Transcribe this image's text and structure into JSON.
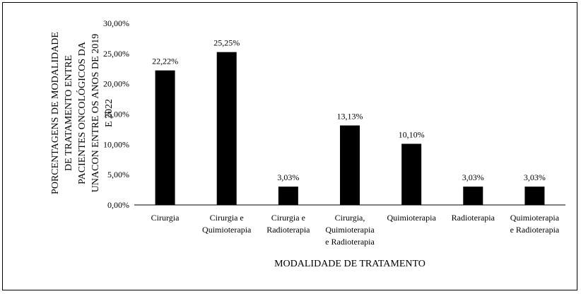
{
  "chart_data": {
    "type": "bar",
    "title": "",
    "xlabel": "MODALIDADE DE TRATAMENTO",
    "ylabel": "PORCENTAGENS DE MODALIDADE DE TRATAMENTO ENTRE PACIENTES ONCOLÓGICOS DA UNACON ENTRE OS ANOS DE 2019 E 2022",
    "ylabel_lines": [
      "PORCENTAGENS DE MODALIDADE",
      "DE TRATAMENTO ENTRE",
      "PACIENTES ONCOLÓGICOS DA",
      "UNACON ENTRE OS ANOS DE 2019",
      "E 2022"
    ],
    "categories": [
      [
        "Cirurgia"
      ],
      [
        "Cirurgia e",
        "Quimioterapia"
      ],
      [
        "Cirurgia e",
        "Radioterapia"
      ],
      [
        "Cirurgia,",
        "Quimioterapia",
        "e Radioterapia"
      ],
      [
        "Quimioterapia"
      ],
      [
        "Radioterapia"
      ],
      [
        "Quimioterapia",
        "e Radioterapia"
      ]
    ],
    "values": [
      22.22,
      25.25,
      3.03,
      13.13,
      10.1,
      3.03,
      3.03
    ],
    "value_labels": [
      "22,22%",
      "25,25%",
      "3,03%",
      "13,13%",
      "10,10%",
      "3,03%",
      "3,03%"
    ],
    "ylim": [
      0,
      30
    ],
    "yticks": [
      0,
      5,
      10,
      15,
      20,
      25,
      30
    ],
    "ytick_labels": [
      "0,00%",
      "5,00%",
      "10,00%",
      "15,00%",
      "20,00%",
      "25,00%",
      "30,00%"
    ],
    "grid": false,
    "legend": "none",
    "bar_color": "#000000"
  }
}
